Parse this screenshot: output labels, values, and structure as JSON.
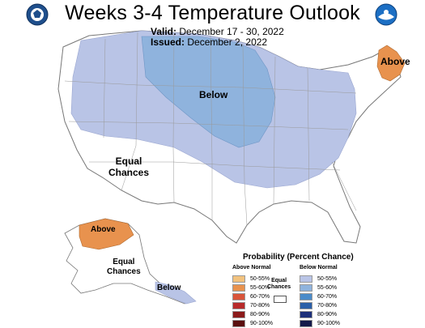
{
  "header": {
    "title": "Weeks 3-4 Temperature Outlook",
    "valid_label": "Valid:",
    "valid_dates": "December 17 - 30, 2022",
    "issued_label": "Issued:",
    "issued_date": "December 2, 2022"
  },
  "logos": {
    "left": "department-of-commerce-seal",
    "right": "noaa-logo"
  },
  "map_labels": {
    "below_conus": "Below",
    "equal_west_line1": "Equal",
    "equal_west_line2": "Chances",
    "above_maine": "Above",
    "above_alaska": "Above",
    "equal_alaska_line1": "Equal",
    "equal_alaska_line2": "Chances",
    "below_alaska": "Below"
  },
  "legend": {
    "title": "Probability (Percent Chance)",
    "above_header": "Above Normal",
    "below_header": "Below Normal",
    "equal_line1": "Equal",
    "equal_line2": "Chances",
    "above_items": [
      {
        "label": "50-55%",
        "color": "#F2C27E"
      },
      {
        "label": "55-60%",
        "color": "#E8924E"
      },
      {
        "label": "60-70%",
        "color": "#D9543A"
      },
      {
        "label": "70-80%",
        "color": "#B82A2A"
      },
      {
        "label": "80-90%",
        "color": "#8B1A1A"
      },
      {
        "label": "90-100%",
        "color": "#5A0F0F"
      }
    ],
    "below_items": [
      {
        "label": "50-55%",
        "color": "#B9C4E6"
      },
      {
        "label": "55-60%",
        "color": "#8FB3DD"
      },
      {
        "label": "60-70%",
        "color": "#4A8BC9"
      },
      {
        "label": "70-80%",
        "color": "#2A5FA8"
      },
      {
        "label": "80-90%",
        "color": "#1C2F7A"
      },
      {
        "label": "90-100%",
        "color": "#141A4A"
      }
    ]
  },
  "colors": {
    "below_light": "#B9C4E6",
    "below_mid": "#8FB3DD",
    "above_light": "#F2C27E",
    "above_mid": "#E8924E",
    "border": "#888888"
  }
}
